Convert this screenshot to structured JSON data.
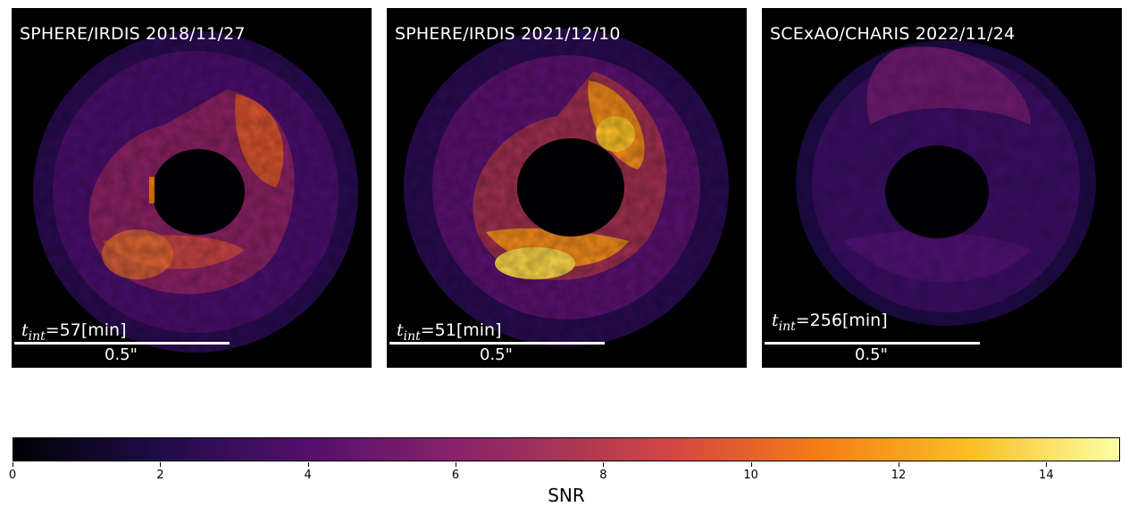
{
  "panels": [
    {
      "title": "SPHERE/IRDIS 2018/11/27",
      "tint_symbol": "t",
      "tint_sub": "int",
      "tint_value": "=57[min]",
      "scale_label": "0.5\""
    },
    {
      "title": "SPHERE/IRDIS 2021/12/10",
      "tint_symbol": "t",
      "tint_sub": "int",
      "tint_value": "=51[min]",
      "scale_label": "0.5\""
    },
    {
      "title": "SCExAO/CHARIS 2022/11/24",
      "tint_symbol": "t",
      "tint_sub": "int",
      "tint_value": "=256[min]",
      "scale_label": "0.5\""
    }
  ],
  "colorbar": {
    "label": "SNR",
    "min": 0,
    "max": 15,
    "ticks": [
      "0",
      "2",
      "4",
      "6",
      "8",
      "10",
      "12",
      "14"
    ],
    "colormap": "inferno",
    "colors": [
      "#000004",
      "#1f0c48",
      "#550f6d",
      "#88226a",
      "#a83655",
      "#d44842",
      "#f57d15",
      "#fac127",
      "#fcffa4"
    ]
  }
}
